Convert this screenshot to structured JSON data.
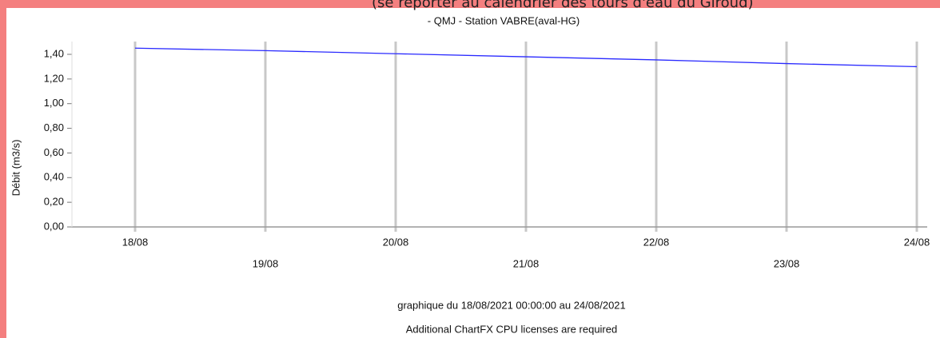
{
  "chart_data": {
    "type": "line",
    "note": "(se reporter au calendrier des tours d'eau du Giroud)",
    "title": "- QMJ - Station VABRE(aval-HG)",
    "y_label": "Débit (m3/s)",
    "categories": [
      "18/08",
      "19/08",
      "20/08",
      "21/08",
      "22/08",
      "23/08",
      "24/08"
    ],
    "series": [
      {
        "color": "#2a2aff",
        "values": [
          1.45,
          1.43,
          1.405,
          1.38,
          1.355,
          1.325,
          1.3
        ]
      }
    ],
    "ylim": [
      0,
      1.5
    ],
    "yticks": [
      {
        "value": 0,
        "label": "0,00"
      },
      {
        "value": 0.2,
        "label": "0,20"
      },
      {
        "value": 0.4,
        "label": "0,40"
      },
      {
        "value": 0.6,
        "label": "0,60"
      },
      {
        "value": 0.8,
        "label": "0,80"
      },
      {
        "value": 1.0,
        "label": "1,00"
      },
      {
        "value": 1.2,
        "label": "1,20"
      },
      {
        "value": 1.4,
        "label": "1,40"
      }
    ],
    "grid": true,
    "footer": [
      "graphique du 18/08/2021 00:00:00 au 24/08/2021",
      "Additional ChartFX CPU licenses are required"
    ]
  }
}
